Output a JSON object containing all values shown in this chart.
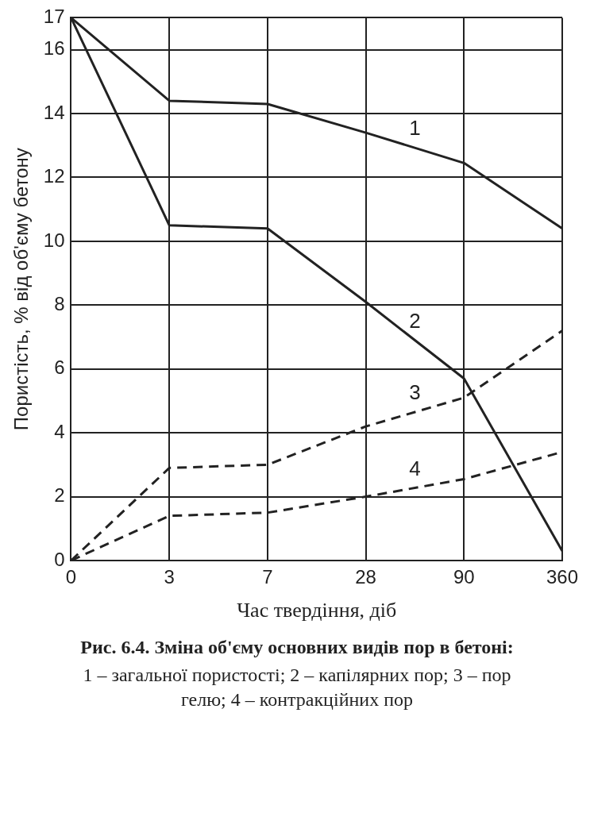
{
  "chart_data": {
    "type": "line",
    "title": "Рис. 6.4. Зміна об'єму основних видів пор в бетоні:",
    "subtitle": "1 – загальної пористості; 2 – капілярних пор; 3 – пор гелю; 4 – контракційних пор",
    "xlabel": "Час твердіння, діб",
    "ylabel": "Пористість, % від об'єму бетону",
    "categories": [
      "0",
      "3",
      "7",
      "28",
      "90",
      "360"
    ],
    "ylim": [
      0,
      17
    ],
    "yticks": [
      0,
      2,
      4,
      6,
      8,
      10,
      12,
      14,
      16,
      17
    ],
    "grid": true,
    "legend": false,
    "marker": "none",
    "series": [
      {
        "name": "1",
        "color": "#222222",
        "line_style": "solid",
        "values": [
          17,
          14.4,
          14.3,
          13.4,
          12.45,
          10.4
        ]
      },
      {
        "name": "2",
        "color": "#222222",
        "line_style": "solid",
        "values": [
          17,
          10.5,
          10.4,
          8.1,
          5.7,
          0.3
        ]
      },
      {
        "name": "3",
        "color": "#222222",
        "line_style": "dashed",
        "values": [
          0,
          2.9,
          3.0,
          4.2,
          5.1,
          7.2
        ]
      },
      {
        "name": "4",
        "color": "#222222",
        "line_style": "dashed",
        "values": [
          0,
          1.4,
          1.5,
          2.0,
          2.55,
          3.4
        ]
      }
    ]
  }
}
